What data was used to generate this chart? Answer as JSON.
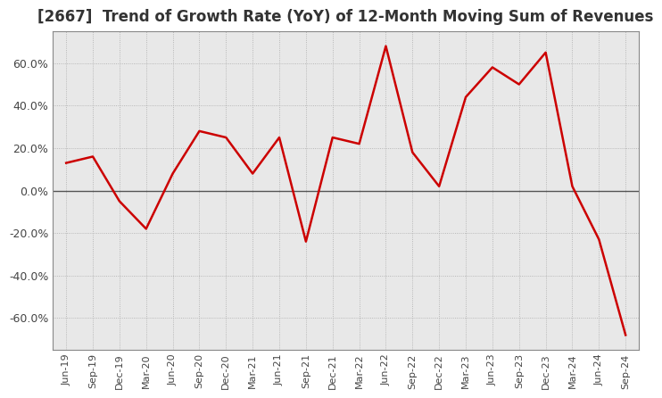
{
  "title": "[2667]  Trend of Growth Rate (YoY) of 12-Month Moving Sum of Revenues",
  "title_fontsize": 12,
  "line_color": "#cc0000",
  "background_color": "#ffffff",
  "plot_bg_color": "#e8e8e8",
  "ylim": [
    -75,
    75
  ],
  "yticks": [
    -60,
    -40,
    -20,
    0,
    20,
    40,
    60
  ],
  "x_labels": [
    "Jun-19",
    "Sep-19",
    "Dec-19",
    "Mar-20",
    "Jun-20",
    "Sep-20",
    "Dec-20",
    "Mar-21",
    "Jun-21",
    "Sep-21",
    "Dec-21",
    "Mar-22",
    "Jun-22",
    "Sep-22",
    "Dec-22",
    "Mar-23",
    "Jun-23",
    "Sep-23",
    "Dec-23",
    "Mar-24",
    "Jun-24",
    "Sep-24"
  ],
  "values": [
    13.0,
    16.0,
    -5.0,
    -18.0,
    8.0,
    28.0,
    25.0,
    8.0,
    25.0,
    -24.0,
    25.0,
    22.0,
    68.0,
    18.0,
    2.0,
    44.0,
    58.0,
    50.0,
    65.0,
    2.0,
    -23.0,
    -68.0
  ]
}
